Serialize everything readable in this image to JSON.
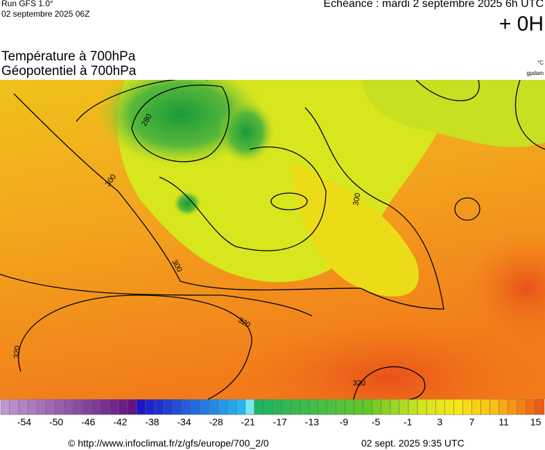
{
  "header": {
    "run": "Run GFS 1.0°",
    "run_date": "02 septembre 2025 06Z",
    "echeance": "Echéance : mardi 2 septembre 2025 6h UTC",
    "offset": "+ 0H",
    "title_1": "Température à 700hPa",
    "title_2": "Géopotentiel à 700hPa",
    "unit_1": "°C",
    "unit_2": "gpdam"
  },
  "map": {
    "contour_labels": [
      "280",
      "300",
      "300",
      "300",
      "320",
      "320",
      "320"
    ]
  },
  "colorbar": {
    "labels": [
      -54,
      -50,
      -46,
      -42,
      -38,
      -34,
      -28,
      -21,
      -17,
      -13,
      -9,
      -5,
      -1,
      3,
      7,
      11,
      15
    ]
  },
  "footer": {
    "source": "© http://www.infoclimat.fr/z/gfs/europe/700_2/0",
    "generated": "02 sept. 2025  9:35 UTC"
  }
}
